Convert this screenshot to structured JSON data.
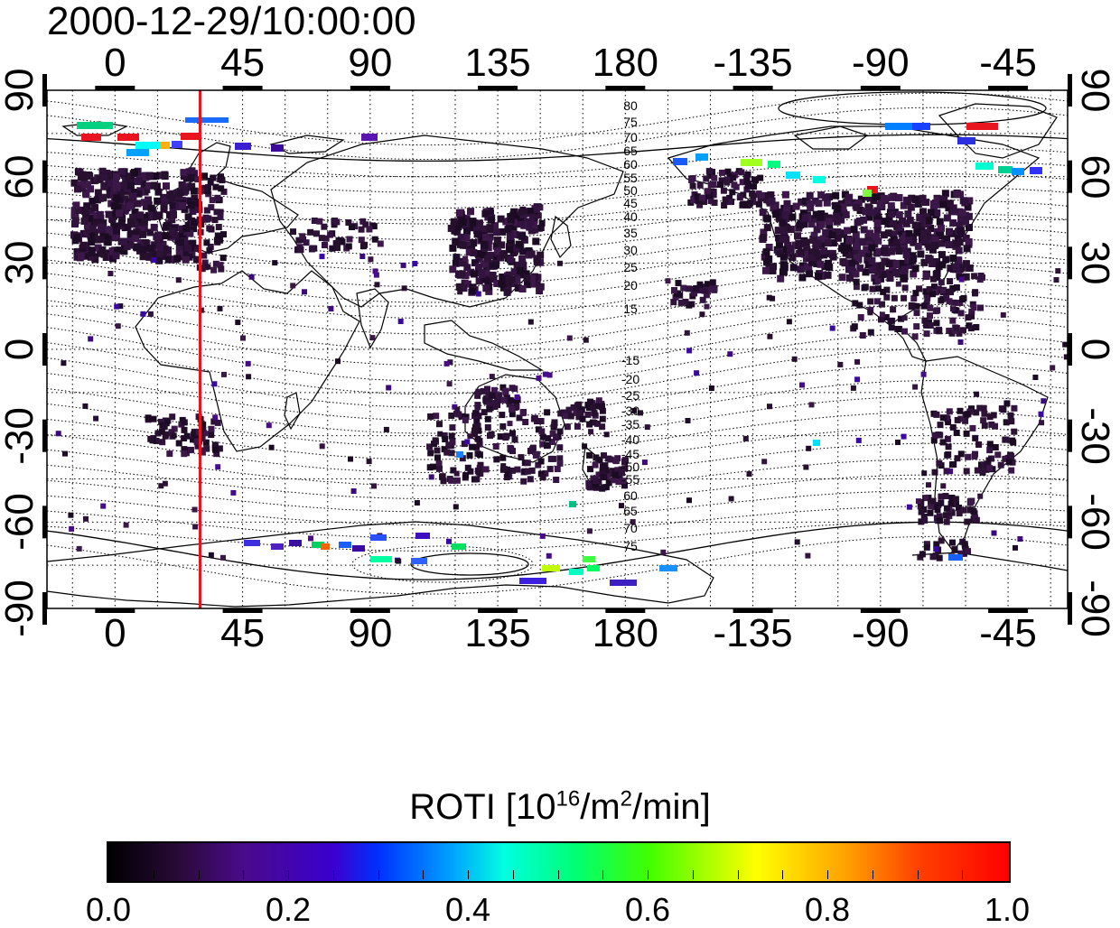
{
  "title": "2000-12-29/10:00:00",
  "map": {
    "top_ticks": [
      "0",
      "45",
      "90",
      "135",
      "180",
      "-135",
      "-90",
      "-45"
    ],
    "bottom_ticks": [
      "0",
      "45",
      "90",
      "135",
      "180",
      "-135",
      "-90",
      "-45"
    ],
    "left_ticks": [
      "90",
      "60",
      "30",
      "0",
      "-30",
      "-60",
      "-90"
    ],
    "right_ticks": [
      "90",
      "60",
      "30",
      "0",
      "-30",
      "-60",
      "-90"
    ],
    "contour_labels_north": [
      "80",
      "75",
      "70",
      "65",
      "60",
      "55",
      "50",
      "45",
      "40",
      "35",
      "30",
      "25",
      "20",
      "15"
    ],
    "contour_labels_south": [
      "-15",
      "-20",
      "-25",
      "-30",
      "-35",
      "-40",
      "-45",
      "-50",
      "-55",
      "60",
      "65",
      "70",
      "75"
    ],
    "marker_line_color": "#e8141e",
    "marker_line_longitude": 30
  },
  "colorbar": {
    "title_main": "ROTI  [10",
    "title_sup1": "16",
    "title_mid": "/m",
    "title_sup2": "2",
    "title_end": "/min]",
    "ticks": [
      "0.0",
      "0.2",
      "0.4",
      "0.6",
      "0.8",
      "1.0"
    ],
    "range": [
      0.0,
      1.0
    ]
  }
}
